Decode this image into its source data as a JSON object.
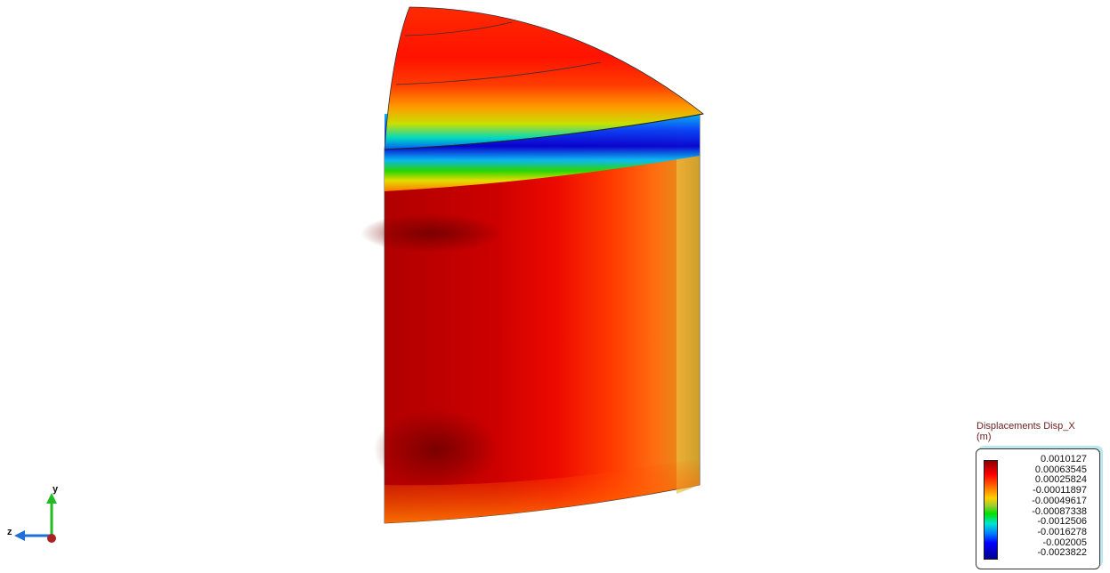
{
  "viewer": {
    "legend": {
      "title": "Displacements Disp_X",
      "units": "(m)",
      "values": [
        "0.0010127",
        "0.00063545",
        "0.00025824",
        "-0.00011897",
        "-0.00049617",
        "-0.00087338",
        "-0.0012506",
        "-0.0016278",
        "-0.002005",
        "-0.0023822"
      ],
      "colors": [
        "#8b0000",
        "#ff0000",
        "#ff6a00",
        "#ffd000",
        "#00e000",
        "#00e5d0",
        "#0080ff",
        "#0000ff",
        "#00008b"
      ]
    },
    "axes": {
      "y_label": "y",
      "z_label": "z",
      "y_color": "#22bb22",
      "z_color": "#1e6fd6",
      "x_color": "#aa2222"
    }
  }
}
